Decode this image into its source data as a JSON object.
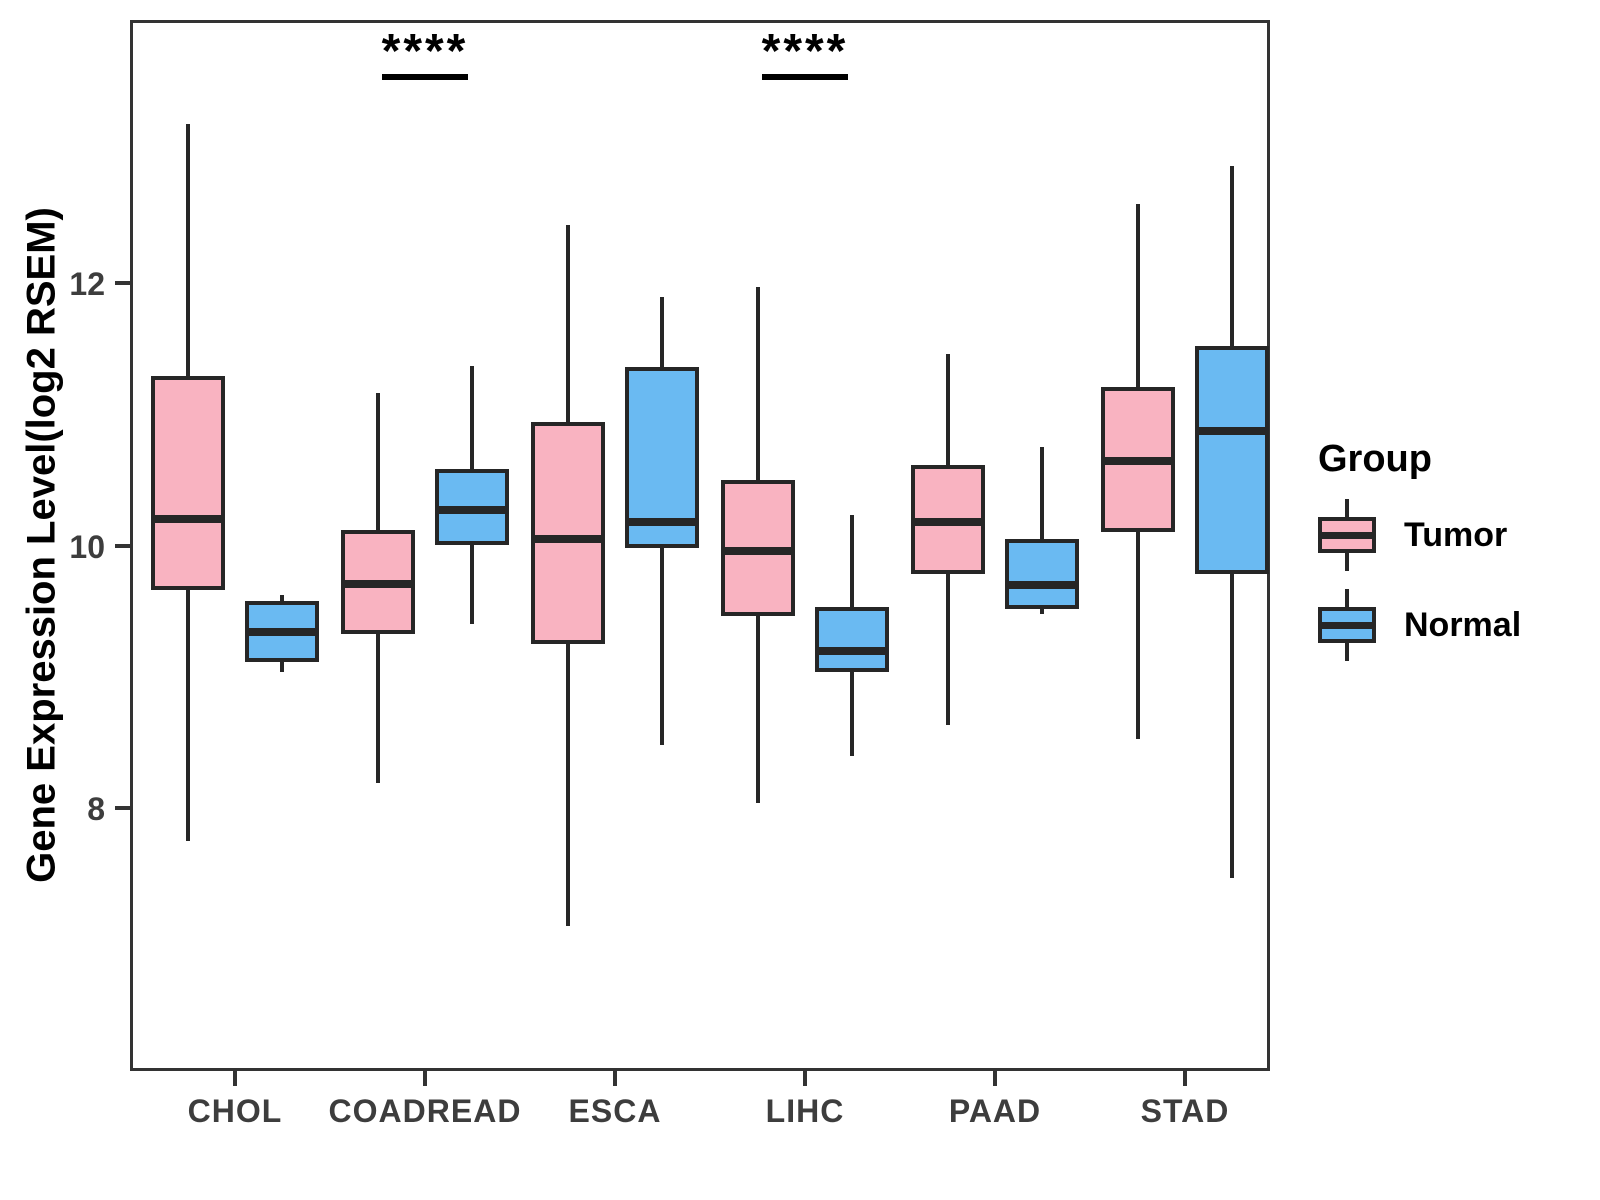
{
  "chart_data": {
    "type": "boxplot",
    "title": "",
    "xlabel": "",
    "ylabel": "Gene Expression Level(log2 RSEM)",
    "ylim": [
      6,
      14
    ],
    "yticks": [
      "8",
      "10",
      "12"
    ],
    "grid": "off",
    "categories": [
      "CHOL",
      "COADREAD",
      "ESCA",
      "LIHC",
      "PAAD",
      "STAD"
    ],
    "series": [
      {
        "name": "Tumor",
        "color": "#F9B3C1",
        "boxes": [
          {
            "low": 7.75,
            "q1": 9.66,
            "median": 10.2,
            "q3": 11.29,
            "high": 13.21
          },
          {
            "low": 8.19,
            "q1": 9.33,
            "median": 9.71,
            "q3": 10.12,
            "high": 11.16
          },
          {
            "low": 7.1,
            "q1": 9.25,
            "median": 10.05,
            "q3": 10.94,
            "high": 12.44
          },
          {
            "low": 8.04,
            "q1": 9.46,
            "median": 9.96,
            "q3": 10.5,
            "high": 11.97
          },
          {
            "low": 8.63,
            "q1": 9.78,
            "median": 10.18,
            "q3": 10.61,
            "high": 11.46
          },
          {
            "low": 8.53,
            "q1": 10.1,
            "median": 10.64,
            "q3": 11.21,
            "high": 12.6
          }
        ]
      },
      {
        "name": "Normal",
        "color": "#6ABAF2",
        "boxes": [
          {
            "low": 9.04,
            "q1": 9.11,
            "median": 9.34,
            "q3": 9.58,
            "high": 9.62
          },
          {
            "low": 9.4,
            "q1": 10.0,
            "median": 10.27,
            "q3": 10.58,
            "high": 11.37
          },
          {
            "low": 8.48,
            "q1": 9.98,
            "median": 10.18,
            "q3": 11.36,
            "high": 11.89
          },
          {
            "low": 8.4,
            "q1": 9.04,
            "median": 9.2,
            "q3": 9.53,
            "high": 10.23
          },
          {
            "low": 9.48,
            "q1": 9.52,
            "median": 9.7,
            "q3": 10.05,
            "high": 10.75
          },
          {
            "low": 7.47,
            "q1": 9.78,
            "median": 10.87,
            "q3": 11.52,
            "high": 12.89
          }
        ]
      }
    ],
    "annotations": [
      {
        "text": "****",
        "category": "COADREAD"
      },
      {
        "text": "****",
        "category": "LIHC"
      }
    ],
    "legend": {
      "title": "Group",
      "position": "right"
    },
    "colors": {
      "box_border": "#262626",
      "tick_text": "#3D3D3D",
      "text": "#000000"
    }
  }
}
